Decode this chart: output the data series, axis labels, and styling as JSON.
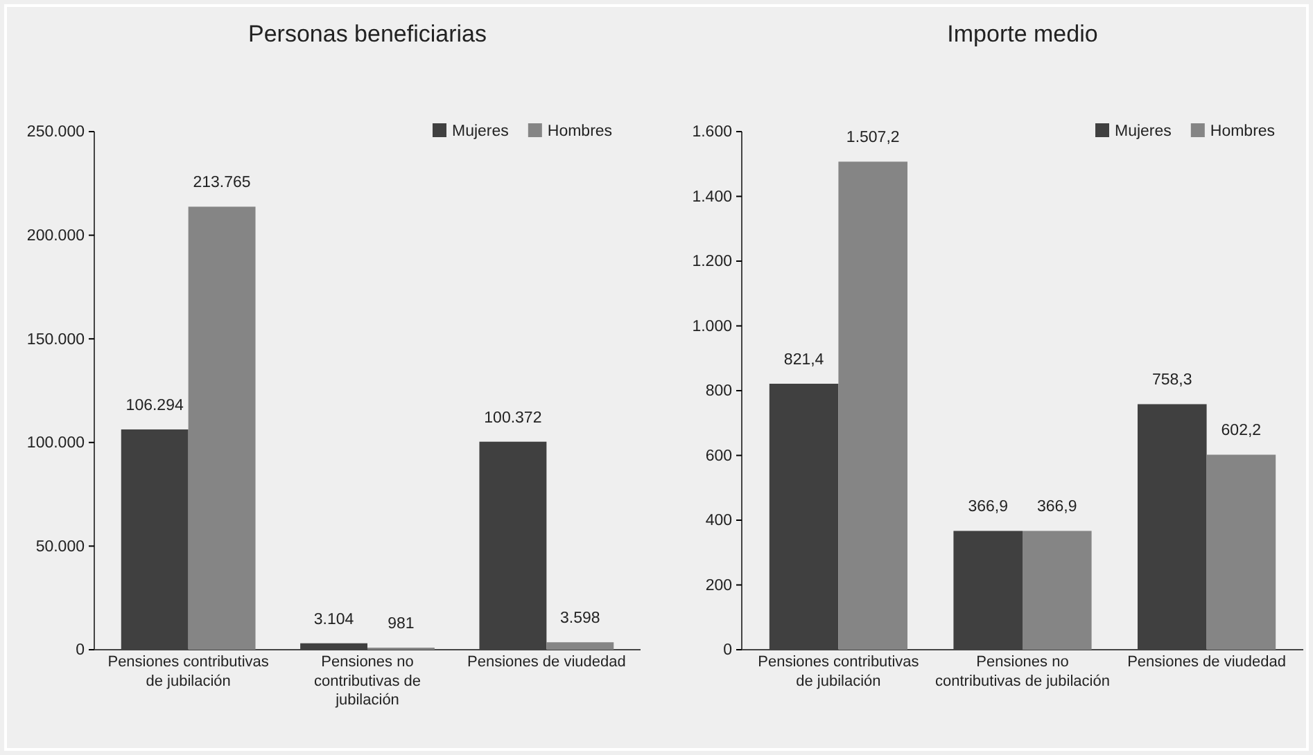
{
  "chart_data": [
    {
      "type": "bar",
      "title": "Personas beneficiarias",
      "categories": [
        "Pensiones contributivas de jubilación",
        "Pensiones no contributivas de jubilación",
        "Pensiones de viudedad"
      ],
      "series": [
        {
          "name": "Mujeres",
          "color": "#404040",
          "values": [
            106294,
            3104,
            100372
          ],
          "value_labels": [
            "106.294",
            "3.104",
            "100.372"
          ]
        },
        {
          "name": "Hombres",
          "color": "#858585",
          "values": [
            213765,
            981,
            3598
          ],
          "value_labels": [
            "213.765",
            "981",
            "3.598"
          ]
        }
      ],
      "ylim": [
        0,
        250000
      ],
      "yticks": [
        0,
        {
          "value": 50000,
          "label": "50.000"
        },
        {
          "value": 100000,
          "label": "100.000"
        },
        {
          "value": 150000,
          "label": "150.000"
        },
        {
          "value": 200000,
          "label": "200.000"
        },
        {
          "value": 250000,
          "label": "250.000"
        }
      ],
      "grid": false,
      "legend": "top right"
    },
    {
      "type": "bar",
      "title": "Importe medio",
      "categories": [
        "Pensiones contributivas de jubilación",
        "Pensiones no contributivas de jubilación",
        "Pensiones de viudedad"
      ],
      "series": [
        {
          "name": "Mujeres",
          "color": "#404040",
          "values": [
            821.4,
            366.9,
            758.3
          ],
          "value_labels": [
            "821,4",
            "366,9",
            "758,3"
          ]
        },
        {
          "name": "Hombres",
          "color": "#858585",
          "values": [
            1507.2,
            366.9,
            602.2
          ],
          "value_labels": [
            "1.507,2",
            "366,9",
            "602,2"
          ]
        }
      ],
      "ylim": [
        0,
        1600
      ],
      "yticks": [
        0,
        200,
        400,
        600,
        800,
        {
          "value": 1000,
          "label": "1.000"
        },
        {
          "value": 1200,
          "label": "1.200"
        },
        {
          "value": 1400,
          "label": "1.400"
        },
        {
          "value": 1600,
          "label": "1.600"
        }
      ],
      "grid": false,
      "legend": "top right"
    }
  ]
}
